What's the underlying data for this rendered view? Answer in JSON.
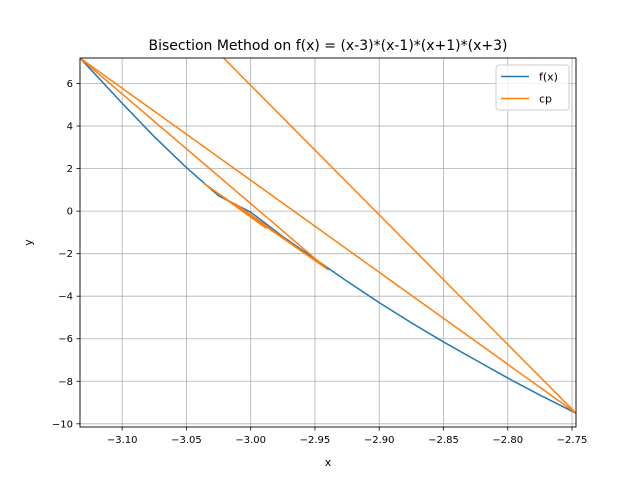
{
  "chart_data": {
    "type": "line",
    "title": "Bisection Method on f(x) = (x-3)*(x-1)*(x+1)*(x+3)",
    "xlabel": "x",
    "ylabel": "y",
    "xlim": [
      -3.1328,
      -2.7469
    ],
    "ylim": [
      -10.15,
      7.2
    ],
    "xticks": [
      -3.1,
      -3.05,
      -3.0,
      -2.95,
      -2.9,
      -2.85,
      -2.8,
      -2.75
    ],
    "xtick_labels": [
      "−3.10",
      "−3.05",
      "−3.00",
      "−2.95",
      "−2.90",
      "−2.85",
      "−2.80",
      "−2.75"
    ],
    "yticks": [
      -10,
      -8,
      -6,
      -4,
      -2,
      0,
      2,
      4,
      6
    ],
    "ytick_labels": [
      "−10",
      "−8",
      "−6",
      "−4",
      "−2",
      "0",
      "2",
      "4",
      "6"
    ],
    "grid": true,
    "legend_position": "top-right",
    "series": [
      {
        "name": "f(x)",
        "color": "#1f77b4",
        "points": [
          [
            -3.1328,
            7.2
          ],
          [
            -3.1,
            5.07
          ],
          [
            -3.075,
            3.5
          ],
          [
            -3.05,
            2.05
          ],
          [
            -3.025,
            0.72
          ],
          [
            -3.0,
            -0.05
          ],
          [
            -2.975,
            -1.2
          ],
          [
            -2.95,
            -2.25
          ],
          [
            -2.925,
            -3.3
          ],
          [
            -2.9,
            -4.3
          ],
          [
            -2.875,
            -5.25
          ],
          [
            -2.85,
            -6.15
          ],
          [
            -2.825,
            -7.0
          ],
          [
            -2.8,
            -7.85
          ],
          [
            -2.775,
            -8.65
          ],
          [
            -2.7469,
            -9.5
          ]
        ]
      },
      {
        "name": "cp",
        "color": "#ff7f0e",
        "segments": [
          [
            [
              -3.0211,
              7.2
            ],
            [
              -2.7469,
              -9.5
            ]
          ],
          [
            [
              -3.1328,
              7.2
            ],
            [
              -2.7469,
              -9.5
            ]
          ],
          [
            [
              -3.1328,
              7.2
            ],
            [
              -2.9398,
              -2.75
            ]
          ],
          [
            [
              -3.0363,
              1.3
            ],
            [
              -2.9398,
              -2.75
            ]
          ],
          [
            [
              -3.0363,
              1.3
            ],
            [
              -2.988,
              -0.8
            ]
          ],
          [
            [
              -3.0121,
              0.35
            ],
            [
              -2.9398,
              -2.75
            ]
          ]
        ]
      }
    ]
  }
}
